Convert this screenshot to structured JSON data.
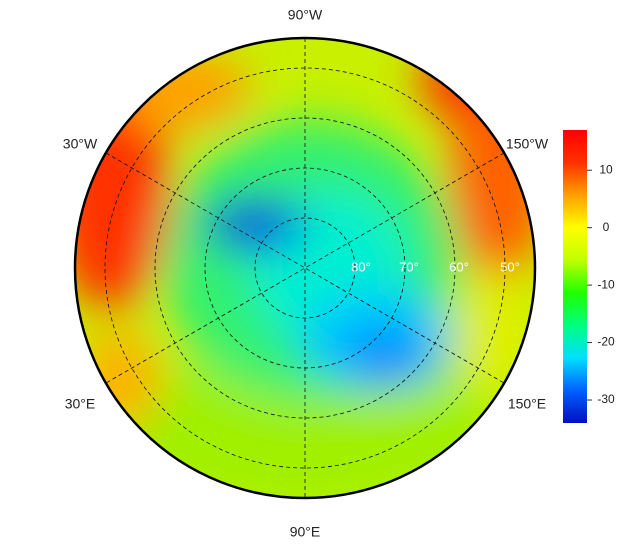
{
  "map": {
    "longitude_labels": [
      "90°W",
      "30°W",
      "150°W",
      "30°E",
      "150°E",
      "90°E"
    ],
    "latitude_labels": [
      "80°",
      "70°",
      "60°",
      "50°"
    ]
  },
  "colorbar": {
    "lim": [
      -34,
      17
    ],
    "ticks": [
      10,
      0,
      -10,
      -20,
      -30
    ],
    "colors": [
      "#0010c0",
      "#0060ff",
      "#00e0ff",
      "#00ff80",
      "#20ff00",
      "#c0ff00",
      "#ffff00",
      "#ffa000",
      "#ff3000",
      "#ff0000"
    ]
  }
}
